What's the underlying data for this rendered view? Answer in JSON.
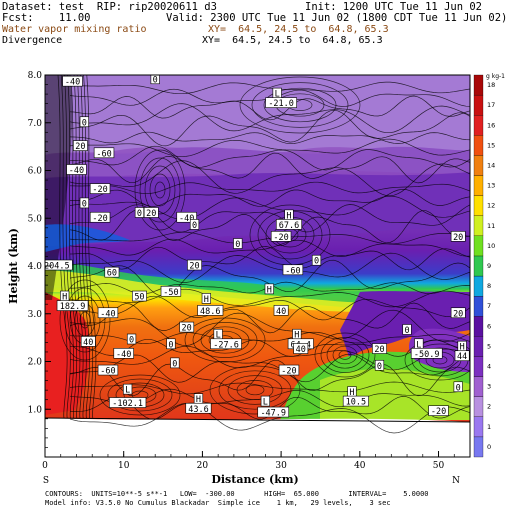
{
  "header": {
    "line1_left": "Dataset: test  RIP: rip20020611 d3",
    "line1_right": "Init: 1200 UTC Tue 11 Jun 02",
    "line2_left": "Fcst:    11.00",
    "line2_right": "Valid: 2300 UTC Tue 11 Jun 02 (1800 CDT Tue 11 Jun 02)",
    "line3_left": "Water vapor mixing ratio",
    "line3_right": "XY=  64.5, 24.5 to  64.8, 65.3",
    "line4_left": "Divergence",
    "line4_right": "XY=  64.5, 24.5 to  64.8, 65.3"
  },
  "footer": {
    "line1": "CONTOURS:  UNITS=10**-5 s**-1   LOW=  -300.00       HIGH=  65.000       INTERVAL=    5.0000",
    "line2": "Model info: V3.5.0 No Cumulus Blackadar  Simple ice    1 km,   29 levels,    3 sec"
  },
  "colors": {
    "moisture_top": "#9c66c8",
    "moisture_dry": "#6a1fb0",
    "moisture_green": "#22cc33",
    "moisture_orange": "#f07010",
    "moisture_red": "#e01818",
    "terrain": "#ffffff",
    "contour": "#000000"
  },
  "chart_data": {
    "type": "heatmap",
    "title": "",
    "xlabel": "Distance (km)",
    "ylabel": "Height (km)",
    "xlim": [
      0,
      54
    ],
    "ylim": [
      0,
      8.0
    ],
    "x_ticks": [
      0,
      10,
      20,
      30,
      40,
      50
    ],
    "x_tick_labels": [
      "0",
      "10",
      "20",
      "30",
      "40",
      "50"
    ],
    "y_ticks": [
      1.0,
      2.0,
      3.0,
      4.0,
      5.0,
      6.0,
      7.0,
      8.0
    ],
    "y_tick_labels": [
      "1.0",
      "2.0",
      "3.0",
      "4.0",
      "5.0",
      "6.0",
      "7.0",
      "8.0"
    ],
    "x_end_labels": {
      "left": "S",
      "right": "N"
    },
    "colorbar": {
      "unit_label": "g kg-1",
      "levels": [
        0,
        1,
        2,
        3,
        4,
        5,
        6,
        7,
        8,
        9,
        10,
        11,
        12,
        13,
        14,
        15,
        16,
        17,
        18
      ],
      "level_labels": [
        "0",
        "1",
        "2",
        "3",
        "4",
        "5",
        "6",
        "7",
        "8",
        "9",
        "10",
        "11",
        "12",
        "13",
        "14",
        "15",
        "16",
        "17",
        "18"
      ],
      "colors": [
        "#7878f0",
        "#9a78f0",
        "#b890e0",
        "#a060d0",
        "#7c30c0",
        "#6a1fb0",
        "#5a10a0",
        "#3050d8",
        "#10a8e0",
        "#30c850",
        "#70e020",
        "#d0f020",
        "#ffe000",
        "#ffb000",
        "#f08010",
        "#f05010",
        "#e02020",
        "#c81010",
        "#a80808"
      ]
    },
    "labels": [
      {
        "text": "-40",
        "x": 3.5,
        "y": 7.85
      },
      {
        "text": "0",
        "x": 14.0,
        "y": 7.9
      },
      {
        "text": "L",
        "x": 29.5,
        "y": 7.6
      },
      {
        "text": "-21.0",
        "x": 30.0,
        "y": 7.4
      },
      {
        "text": "0",
        "x": 5.0,
        "y": 7.0
      },
      {
        "text": "20",
        "x": 4.5,
        "y": 6.5
      },
      {
        "text": "-60",
        "x": 7.5,
        "y": 6.35
      },
      {
        "text": "-40",
        "x": 4.0,
        "y": 6.0
      },
      {
        "text": "-20",
        "x": 7.0,
        "y": 5.6
      },
      {
        "text": "0",
        "x": 5.0,
        "y": 5.3
      },
      {
        "text": "-20",
        "x": 7.0,
        "y": 5.0
      },
      {
        "text": "0",
        "x": 12.0,
        "y": 5.1
      },
      {
        "text": "20",
        "x": 13.5,
        "y": 5.1
      },
      {
        "text": "-40",
        "x": 18.0,
        "y": 5.0
      },
      {
        "text": "0",
        "x": 19.0,
        "y": 4.85
      },
      {
        "text": "H",
        "x": 31.0,
        "y": 5.05
      },
      {
        "text": "67.6",
        "x": 31.0,
        "y": 4.85
      },
      {
        "text": "-20",
        "x": 30.0,
        "y": 4.6
      },
      {
        "text": "0",
        "x": 24.5,
        "y": 4.45
      },
      {
        "text": "0",
        "x": 34.5,
        "y": 4.1
      },
      {
        "text": "20",
        "x": 52.5,
        "y": 4.6
      },
      {
        "text": "204.5",
        "x": 1.5,
        "y": 4.0
      },
      {
        "text": "60",
        "x": 8.5,
        "y": 3.85
      },
      {
        "text": "20",
        "x": 19.0,
        "y": 4.0
      },
      {
        "text": "-60",
        "x": 31.5,
        "y": 3.9
      },
      {
        "text": "H",
        "x": 28.5,
        "y": 3.5
      },
      {
        "text": "H",
        "x": 2.5,
        "y": 3.35
      },
      {
        "text": "182.9",
        "x": 3.5,
        "y": 3.15
      },
      {
        "text": "-40",
        "x": 8.0,
        "y": 3.0
      },
      {
        "text": "50",
        "x": 12.0,
        "y": 3.35
      },
      {
        "text": "-50",
        "x": 16.0,
        "y": 3.45
      },
      {
        "text": "H",
        "x": 20.5,
        "y": 3.3
      },
      {
        "text": "48.6",
        "x": 21.0,
        "y": 3.05
      },
      {
        "text": "40",
        "x": 30.0,
        "y": 3.05
      },
      {
        "text": "20",
        "x": 52.5,
        "y": 3.0
      },
      {
        "text": "40",
        "x": 5.5,
        "y": 2.4
      },
      {
        "text": "-40",
        "x": 10.0,
        "y": 2.15
      },
      {
        "text": "0",
        "x": 11.0,
        "y": 2.45
      },
      {
        "text": "20",
        "x": 18.0,
        "y": 2.7
      },
      {
        "text": "L",
        "x": 22.0,
        "y": 2.55
      },
      {
        "text": "-27.6",
        "x": 23.0,
        "y": 2.35
      },
      {
        "text": "0",
        "x": 16.0,
        "y": 2.35
      },
      {
        "text": "H",
        "x": 32.0,
        "y": 2.55
      },
      {
        "text": "64.4",
        "x": 32.5,
        "y": 2.35
      },
      {
        "text": "40",
        "x": 32.5,
        "y": 2.25
      },
      {
        "text": "20",
        "x": 42.5,
        "y": 2.25
      },
      {
        "text": "0",
        "x": 46.0,
        "y": 2.65
      },
      {
        "text": "L",
        "x": 47.5,
        "y": 2.35
      },
      {
        "text": "-50.9",
        "x": 48.5,
        "y": 2.15
      },
      {
        "text": "H",
        "x": 53.0,
        "y": 2.3
      },
      {
        "text": "44",
        "x": 53.0,
        "y": 2.1
      },
      {
        "text": "0",
        "x": 16.5,
        "y": 1.95
      },
      {
        "text": "0",
        "x": 42.5,
        "y": 1.9
      },
      {
        "text": "-20",
        "x": 31.0,
        "y": 1.8
      },
      {
        "text": "-60",
        "x": 8.0,
        "y": 1.8
      },
      {
        "text": "L",
        "x": 10.5,
        "y": 1.4
      },
      {
        "text": "-102.1",
        "x": 10.5,
        "y": 1.12
      },
      {
        "text": "H",
        "x": 19.5,
        "y": 1.2
      },
      {
        "text": "43.6",
        "x": 19.5,
        "y": 1.0
      },
      {
        "text": "L",
        "x": 28.0,
        "y": 1.15
      },
      {
        "text": "-47.9",
        "x": 29.0,
        "y": 0.92
      },
      {
        "text": "H",
        "x": 39.0,
        "y": 1.35
      },
      {
        "text": "10.5",
        "x": 39.5,
        "y": 1.15
      },
      {
        "text": "0",
        "x": 52.5,
        "y": 1.45
      },
      {
        "text": "-20",
        "x": 50.0,
        "y": 0.95
      }
    ]
  }
}
